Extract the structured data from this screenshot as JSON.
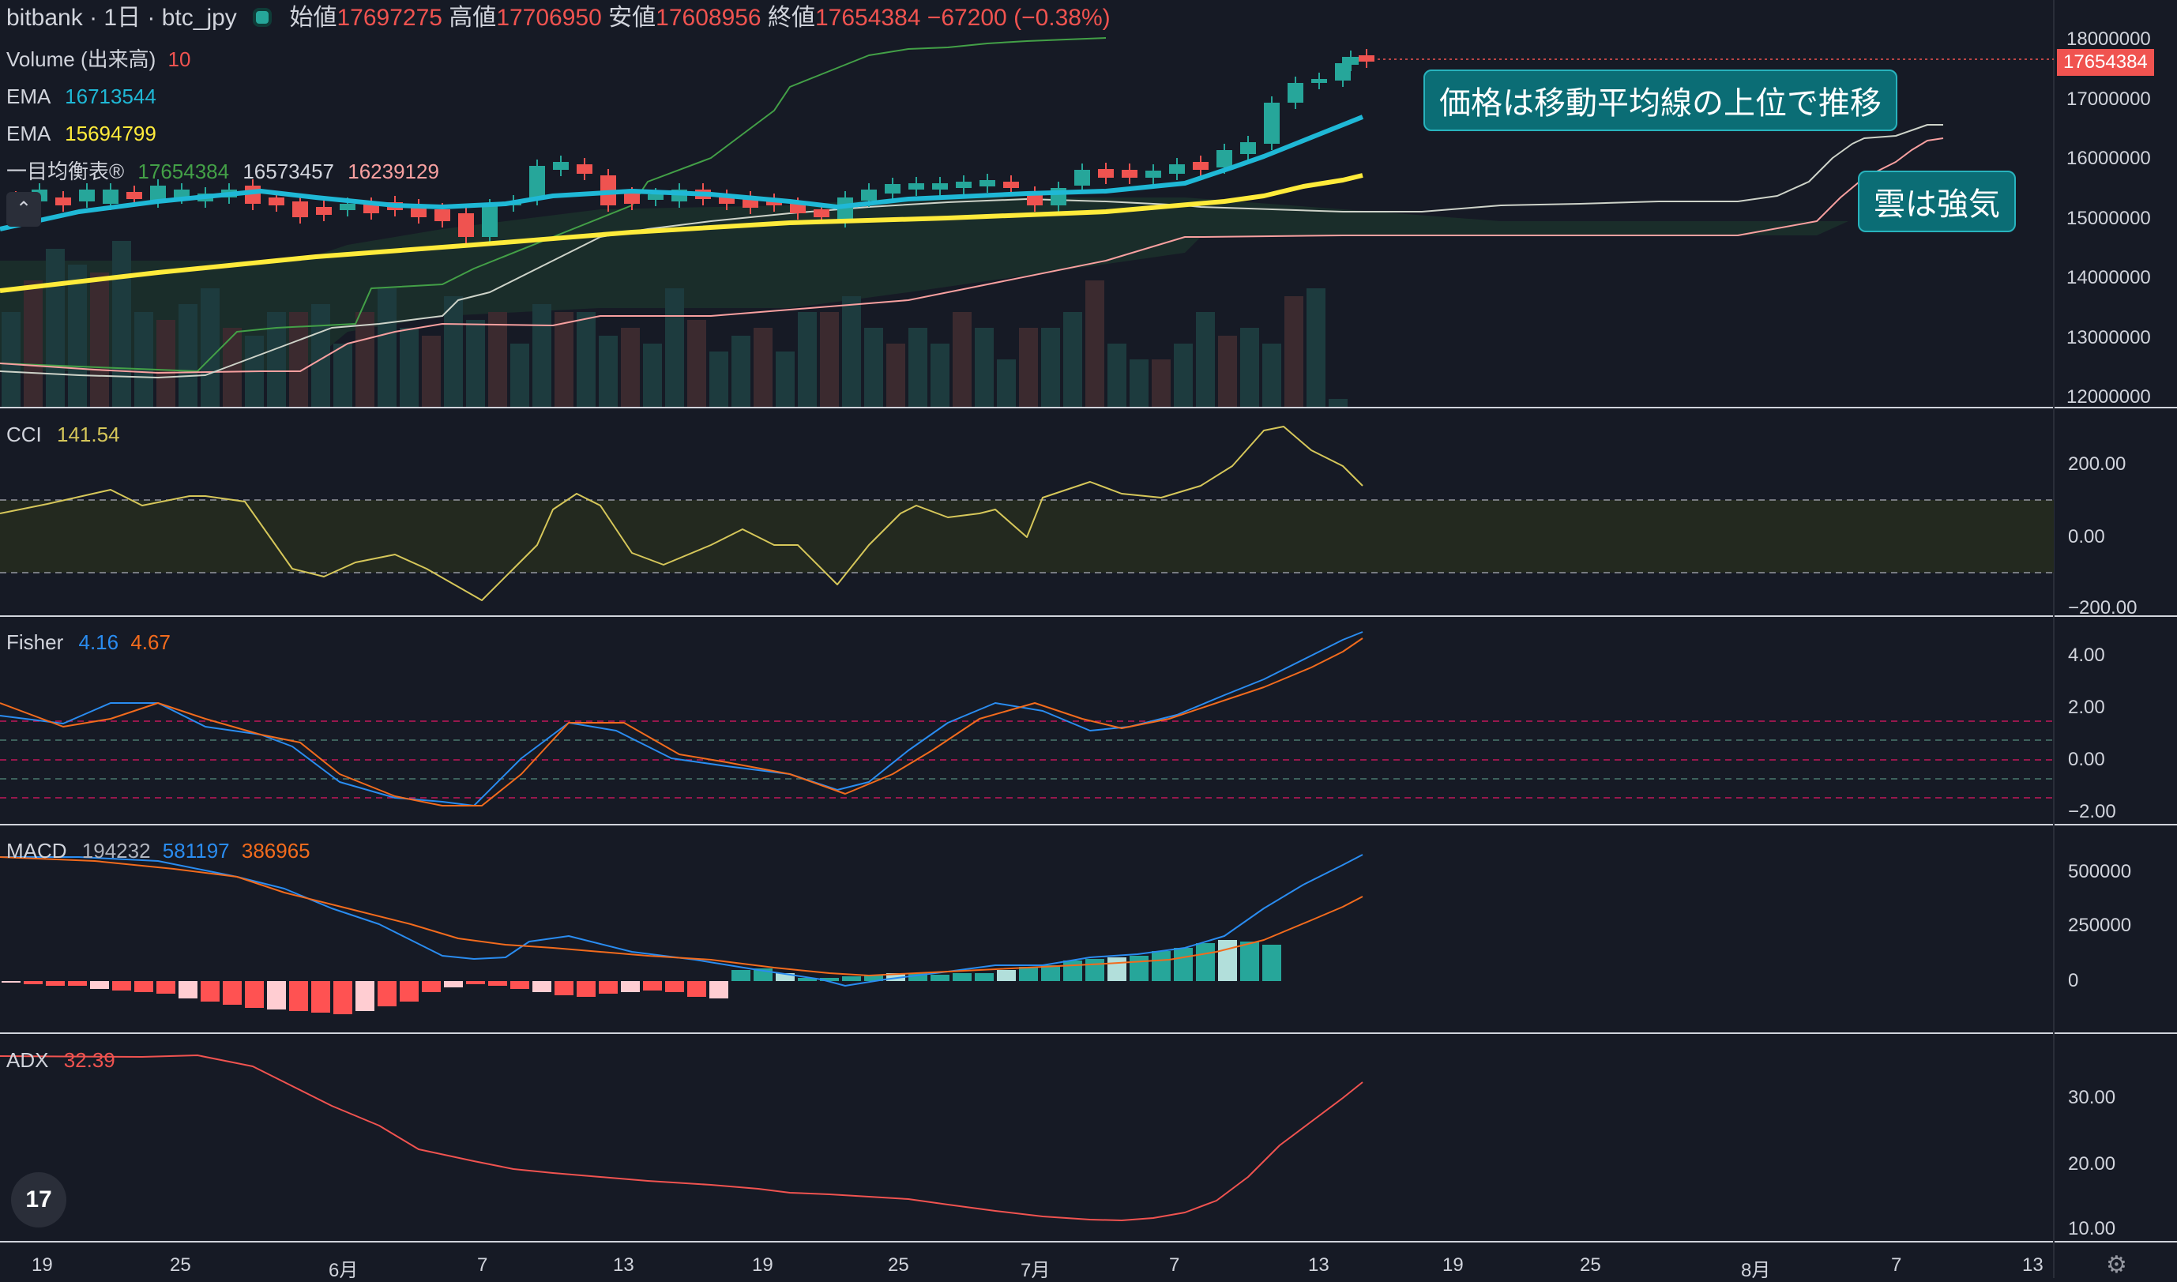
{
  "header": {
    "symbol": "bitbank · 1日 · btc_jpy",
    "open_label": "始値",
    "open": "17697275",
    "high_label": "高値",
    "high": "17706950",
    "low_label": "安値",
    "low": "17608956",
    "close_label": "終値",
    "close": "17654384",
    "change": "−67200 (−0.38%)"
  },
  "legend": {
    "volume_label": "Volume (出来高)",
    "volume_value": "10",
    "ema1_label": "EMA",
    "ema1_value": "16713544",
    "ema2_label": "EMA",
    "ema2_value": "15694799",
    "ichimoku_label": "一目均衡表®",
    "ichi_v1": "17654384",
    "ichi_v2": "16573457",
    "ichi_v3": "16239129"
  },
  "price_tag": "17654384",
  "callouts": {
    "c1": "価格は移動平均線の上位で推移",
    "c2": "雲は強気"
  },
  "indicators": {
    "cci": {
      "label": "CCI",
      "value": "141.54"
    },
    "fisher": {
      "label": "Fisher",
      "v1": "4.16",
      "v2": "4.67"
    },
    "macd": {
      "label": "MACD",
      "v1": "194232",
      "v2": "581197",
      "v3": "386965"
    },
    "adx": {
      "label": "ADX",
      "value": "32.39"
    }
  },
  "axes": {
    "price_ticks": [
      "18000000",
      "17000000",
      "16000000",
      "15000000",
      "14000000",
      "13000000",
      "12000000"
    ],
    "cci_ticks": [
      "200.00",
      "0.00",
      "−200.00"
    ],
    "fisher_ticks": [
      "4.00",
      "2.00",
      "0.00",
      "−2.00"
    ],
    "macd_ticks": [
      "500000",
      "250000",
      "0"
    ],
    "adx_ticks": [
      "30.00",
      "20.00",
      "10.00"
    ],
    "time_ticks": [
      "19",
      "25",
      "6月",
      "7",
      "13",
      "19",
      "25",
      "7月",
      "7",
      "13",
      "19",
      "25",
      "8月",
      "7",
      "13"
    ]
  },
  "colors": {
    "bg": "#161a25",
    "up": "#26a69a",
    "down": "#ef5350",
    "ema1": "#1fb8d6",
    "ema2": "#ffeb3b",
    "cci": "#d6c75a",
    "fisher1": "#2a8cf0",
    "fisher2": "#f26b1d",
    "adx": "#f05350",
    "macd_pos": "#26a69a",
    "macd_neg": "#ff5252"
  },
  "icons": {
    "collapse": "chevron-up-icon",
    "logo": "tradingview-logo",
    "settings": "gear-icon"
  }
}
